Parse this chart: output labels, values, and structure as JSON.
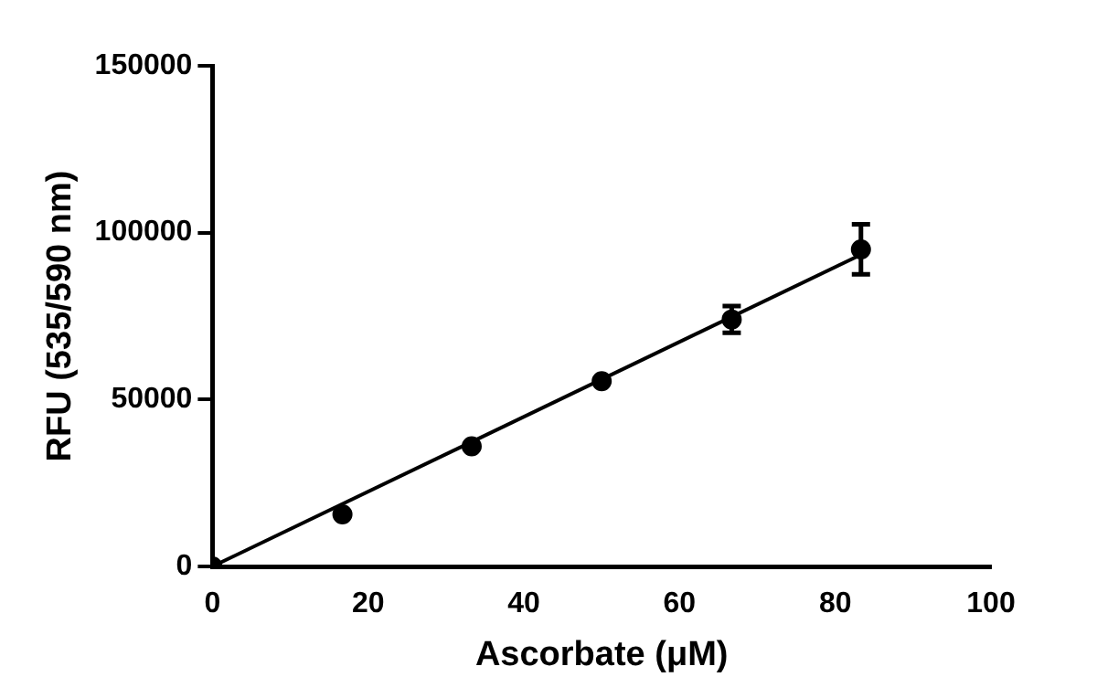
{
  "chart_data": {
    "type": "scatter",
    "xlabel": "Ascorbate (μM)",
    "ylabel": "RFU (535/590 nm)",
    "xlim": [
      0,
      100
    ],
    "xticks": [
      0,
      20,
      40,
      60,
      80,
      100
    ],
    "ylim": [
      0,
      150000
    ],
    "yticks": [
      0,
      50000,
      100000,
      150000
    ],
    "grid": false,
    "legend": false,
    "marker": "circle",
    "series": [
      {
        "type": "scatter",
        "color": "#000000",
        "x": [
          0,
          16.7,
          33.3,
          50,
          66.7,
          83.3
        ],
        "values": [
          0,
          15600,
          36000,
          55500,
          74000,
          95000
        ],
        "errors": [
          null,
          null,
          null,
          null,
          4000,
          7500
        ]
      },
      {
        "type": "line",
        "color": "#000000",
        "x": [
          0,
          83.3
        ],
        "values": [
          0,
          93400
        ],
        "marker": "none",
        "line_style": "solid"
      }
    ]
  }
}
